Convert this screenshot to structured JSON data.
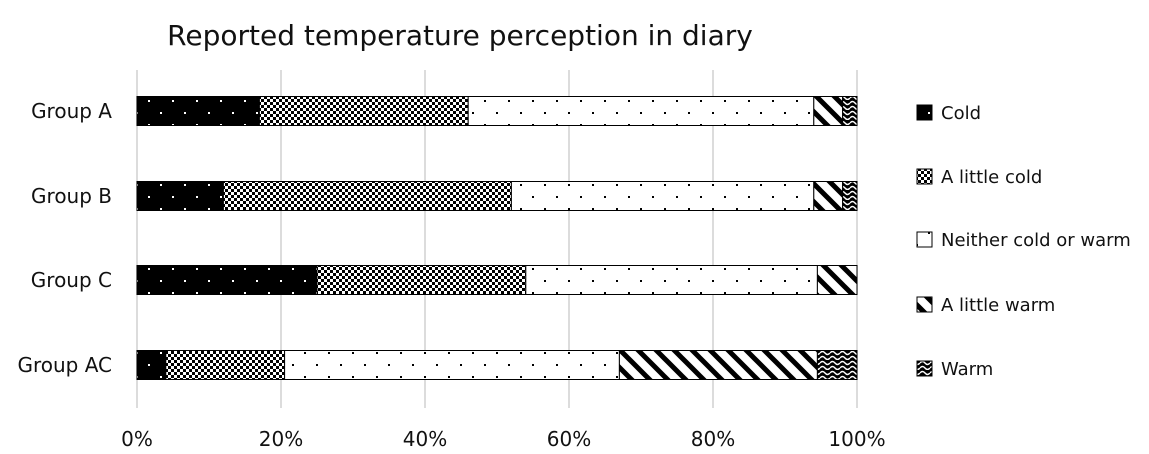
{
  "chart_data": {
    "type": "bar",
    "orientation": "horizontal",
    "stacked": "percent",
    "title": "Reported temperature perception in diary",
    "categories": [
      "Group A",
      "Group B",
      "Group C",
      "Group AC"
    ],
    "series": [
      {
        "name": "Cold",
        "values": [
          17,
          12,
          25,
          4
        ],
        "pattern": "cold"
      },
      {
        "name": "A little cold",
        "values": [
          29,
          40,
          29,
          16.5
        ],
        "pattern": "little-cold"
      },
      {
        "name": "Neither cold or warm",
        "values": [
          48,
          42,
          40.5,
          46.5
        ],
        "pattern": "neither"
      },
      {
        "name": "A little warm",
        "values": [
          4,
          4,
          5.5,
          27.5
        ],
        "pattern": "little-warm"
      },
      {
        "name": "Warm",
        "values": [
          2,
          2,
          0,
          5.5
        ],
        "pattern": "warm"
      }
    ],
    "x_ticks": [
      "0%",
      "20%",
      "40%",
      "60%",
      "80%",
      "100%"
    ],
    "xlim": [
      0,
      100
    ],
    "grid": "vertical",
    "legend_position": "right"
  }
}
